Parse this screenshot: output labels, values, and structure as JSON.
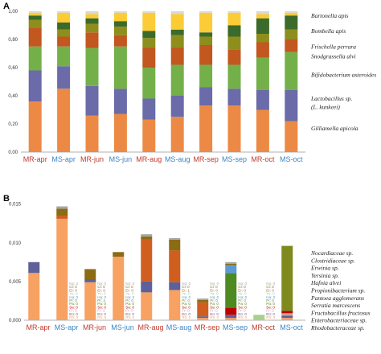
{
  "panels": {
    "a": "A",
    "b": "B"
  },
  "colors": {
    "gilliamella": "#EC8A45",
    "lactobacillus": "#6A6BA8",
    "bifidobacterium": "#74B04A",
    "snodgrassella": "#C25720",
    "frischella": "#8E8E1C",
    "bombella": "#3C6A2A",
    "bartonella": "#FCCC36",
    "thin": "#D8D8D8",
    "mr_label": "#C0392B",
    "ms_label": "#3C84C6",
    "rhodobacteraceae": "#F7A163",
    "enterobacteriaceae": "#5E6099",
    "fructobacillus": "#C9A0A0",
    "serratia": "#C00000",
    "pantoea": "#4D8A22",
    "propionibacterium": "#7E8A1E",
    "hafnia": "#5B9BD5",
    "yersinia": "#A9D18E",
    "erwinia": "#D05E1E",
    "clostridiaceae": "#8B6B14",
    "nocardiaceae": "#A6A6A6"
  },
  "chart_data": [
    {
      "type": "bar",
      "stacked": true,
      "categories": [
        "MR-apr",
        "MS-apr",
        "MR-jun",
        "MS-jun",
        "MR-aug",
        "MS-aug",
        "MR-sep",
        "MS-sep",
        "MR-oct",
        "MS-oct"
      ],
      "category_groups": [
        "MR",
        "MS",
        "MR",
        "MS",
        "MR",
        "MS",
        "MR",
        "MS",
        "MR",
        "MS"
      ],
      "ylim": [
        0,
        1
      ],
      "yticks": [
        "0,00",
        "0,20",
        "0,40",
        "0,60",
        "0,80",
        "1,00"
      ],
      "series": [
        {
          "name": "Gilliamella apicola",
          "color_key": "gilliamella",
          "values": [
            0.36,
            0.45,
            0.26,
            0.27,
            0.23,
            0.25,
            0.33,
            0.33,
            0.3,
            0.22
          ]
        },
        {
          "name": "Lactobacillus sp. (L. kunkeei)",
          "color_key": "lactobacillus",
          "values": [
            0.22,
            0.16,
            0.21,
            0.18,
            0.15,
            0.15,
            0.13,
            0.12,
            0.14,
            0.22
          ]
        },
        {
          "name": "Bifidobacterium asteroides",
          "color_key": "bifidobacterium",
          "values": [
            0.17,
            0.14,
            0.27,
            0.3,
            0.22,
            0.22,
            0.16,
            0.17,
            0.23,
            0.27
          ]
        },
        {
          "name": "Snodgrassella alvi",
          "color_key": "snodgrassella",
          "values": [
            0.13,
            0.07,
            0.11,
            0.08,
            0.14,
            0.12,
            0.14,
            0.11,
            0.11,
            0.09
          ]
        },
        {
          "name": "Frischella perrara",
          "color_key": "frischella",
          "values": [
            0.06,
            0.05,
            0.06,
            0.06,
            0.07,
            0.09,
            0.06,
            0.09,
            0.06,
            0.07
          ]
        },
        {
          "name": "Bombella apis",
          "color_key": "bombella",
          "values": [
            0.03,
            0.05,
            0.04,
            0.04,
            0.05,
            0.04,
            0.03,
            0.08,
            0.11,
            0.1
          ]
        },
        {
          "name": "Bartonella apis",
          "color_key": "bartonella",
          "values": [
            0.02,
            0.07,
            0.03,
            0.06,
            0.13,
            0.11,
            0.14,
            0.09,
            0.03,
            0.02
          ]
        },
        {
          "name": "",
          "color_key": "thin",
          "values": [
            0.01,
            0.01,
            0.02,
            0.01,
            0.01,
            0.02,
            0.01,
            0.01,
            0.02,
            0.01
          ]
        }
      ],
      "legend": [
        {
          "text": "Bartonella apis",
          "y": 0.97
        },
        {
          "text": "Bombella apis",
          "y": 0.86
        },
        {
          "text": "Frischella perrara",
          "y": 0.75
        },
        {
          "text": "Snodgrassella alvi",
          "y": 0.68
        },
        {
          "text": "Bifidobacterium asteroides",
          "y": 0.55
        },
        {
          "text": "Lactobacillus sp.",
          "y": 0.38
        },
        {
          "text": "(L. kunkeei)",
          "y": 0.32
        },
        {
          "text": "Gilliamella apicola",
          "y": 0.17
        }
      ]
    },
    {
      "type": "bar",
      "stacked": true,
      "categories": [
        "MR-apr",
        "MS-apr",
        "MR-jun",
        "MS-jun",
        "MR-aug",
        "MS-aug",
        "MR-sep",
        "MS-sep",
        "MR-oct",
        "MS-oct"
      ],
      "category_groups": [
        "MR",
        "MS",
        "MR",
        "MS",
        "MR",
        "MS",
        "MR",
        "MS",
        "MR",
        "MS"
      ],
      "ylim": [
        0,
        0.016
      ],
      "yticks": [
        "0,000",
        "0,005",
        "0,010",
        "0,015"
      ],
      "tick_values": [
        0,
        0.005,
        0.01,
        0.015
      ],
      "series": [
        {
          "name": "Rhodobacteraceae sp.",
          "color_key": "rhodobacteraceae",
          "values": [
            0.0061,
            0.0131,
            0.0049,
            0.0082,
            0.0036,
            0.0039,
            0.0003,
            0.0003,
            0.0,
            0.0003
          ]
        },
        {
          "name": "Enterobacteriaceae sp.",
          "color_key": "enterobacteriaceae",
          "values": [
            0.0014,
            0.0,
            0.0004,
            0.0,
            0.0014,
            0.001,
            0.0002,
            0.0004,
            0.0,
            0.0003
          ]
        },
        {
          "name": "Fructobacillus fructosus",
          "color_key": "fructobacillus",
          "values": [
            0.0,
            0.0,
            0.0,
            0.0,
            0.0,
            0.0,
            0.0,
            0.0,
            0.0,
            0.0003
          ]
        },
        {
          "name": "Serratia marcescens",
          "color_key": "serratia",
          "values": [
            0.0,
            0.0,
            0.0,
            0.0,
            0.0,
            0.0,
            0.0,
            0.0009,
            0.0,
            0.0003
          ]
        },
        {
          "name": "Pantoea agglomerans",
          "color_key": "pantoea",
          "values": [
            0.0,
            0.0,
            0.0,
            0.0,
            0.0,
            0.0,
            0.0,
            0.0045,
            0.0,
            0.0
          ]
        },
        {
          "name": "Propionibacterium sp.",
          "color_key": "propionibacterium",
          "values": [
            0.0,
            0.0,
            0.0,
            0.0,
            0.0,
            0.0,
            0.0,
            0.0,
            0.0,
            0.0084
          ]
        },
        {
          "name": "Hafnia alvei",
          "color_key": "hafnia",
          "values": [
            0.0,
            0.0,
            0.0,
            0.0,
            0.0,
            0.0,
            0.0,
            0.001,
            0.0,
            0.0
          ]
        },
        {
          "name": "Yersinia sp.",
          "color_key": "yersinia",
          "values": [
            0.0,
            0.0,
            0.0,
            0.0,
            0.0,
            0.0,
            0.0,
            0.0,
            0.0007,
            0.0
          ]
        },
        {
          "name": "Erwinia sp.",
          "color_key": "erwinia",
          "values": [
            0.0,
            0.0004,
            0.0,
            0.0,
            0.0054,
            0.0041,
            0.0018,
            0.0,
            0.0,
            0.0
          ]
        },
        {
          "name": "Clostridiaceae sp.",
          "color_key": "clostridiaceae",
          "values": [
            0.0,
            0.0009,
            0.0013,
            0.0006,
            0.0004,
            0.0014,
            0.0003,
            0.0002,
            0.0,
            0.0
          ]
        },
        {
          "name": "Nocardiaceae sp.",
          "color_key": "nocardiaceae",
          "values": [
            0.0,
            0.0003,
            0.0,
            0.0,
            0.0003,
            0.0002,
            0.0002,
            0.0002,
            0.0,
            0.0
          ]
        }
      ],
      "legend": [
        {
          "text": "Nocardiaceae sp.",
          "color_key": "nocardiaceae"
        },
        {
          "text": "Clostridiaceae sp.",
          "color_key": "clostridiaceae"
        },
        {
          "text": "Erwinia sp.",
          "color_key": "erwinia"
        },
        {
          "text": "Yersinia sp.",
          "color_key": "yersinia"
        },
        {
          "text": "Hafnia alvei",
          "color_key": "hafnia"
        },
        {
          "text": "Propionibacterium sp.",
          "color_key": "propionibacterium"
        },
        {
          "text": "Pantoea agglomerans",
          "color_key": "pantoea"
        },
        {
          "text": "Serratia marcescens",
          "color_key": "serratia"
        },
        {
          "text": "Fructobacillus fructosus",
          "color_key": "fructobacillus"
        },
        {
          "text": "Enterobacteriaceae sp.",
          "color_key": "enterobacteriaceae"
        },
        {
          "text": "Rhodobacteraceae sp.",
          "color_key": "rhodobacteraceae"
        }
      ],
      "annotation_columns": [
        {
          "after_index": 1,
          "lines": [
            "No: 2",
            "Cl: 0",
            "Er: 0",
            "Ye: 0",
            "Ha: 0",
            "Pr: 0",
            "Pa: 0",
            "Se: 0",
            "Fr: 0",
            "En: 0",
            "Rh: 0"
          ]
        },
        {
          "after_index": 2,
          "lines": [
            "No: 0",
            "Cl: 0",
            "Er: 0",
            "Ye: 0",
            "Ha: 0",
            "Pr: 4",
            "Pa: 0",
            "Se: 0",
            "Fr: 2",
            "En: 0",
            "Rh: 5"
          ]
        },
        {
          "after_index": 3,
          "lines": [
            "No: 0",
            "Cl: 0",
            "Er: 0",
            "Ye: 0",
            "Ha: 0",
            "Pr: 0",
            "Pa: 0",
            "Se: 0",
            "Fr: 0",
            "En: 0",
            "Rh: 0"
          ]
        },
        {
          "after_index": 5,
          "lines": [
            "No: 0",
            "Cl: 0",
            "Er: 1",
            "Ye: 0",
            "Ha: 0",
            "Pr: 0",
            "Pa: 0",
            "Se: 0",
            "Fr: 0",
            "En: 0",
            "Rh: 0"
          ]
        },
        {
          "after_index": 6,
          "lines": [
            "No: 0",
            "Cl: 0",
            "Er: 0",
            "Ye: 0",
            "Ha: 0",
            "Pr: 0",
            "Pa: 0",
            "Se: 0",
            "Fr: 0",
            "En: 0",
            "Rh: 0"
          ]
        },
        {
          "after_index": 7,
          "lines": [
            "No: 0",
            "Cl: 0",
            "Er: 0",
            "Ye: 0",
            "Ha: 0",
            "Pr: 0",
            "Pa: 0",
            "Se: 0",
            "Fr: 0",
            "En: 0",
            "Rh: 0"
          ]
        },
        {
          "after_index": 8,
          "lines": [
            "No: 0",
            "Cl: 0",
            "Er: 0",
            "Ye: 0",
            "Ha: 0",
            "Pr: 0",
            "Pa: 0",
            "Se: 0",
            "Fr: 0",
            "En: 0",
            "Rh: 0"
          ]
        }
      ]
    }
  ]
}
